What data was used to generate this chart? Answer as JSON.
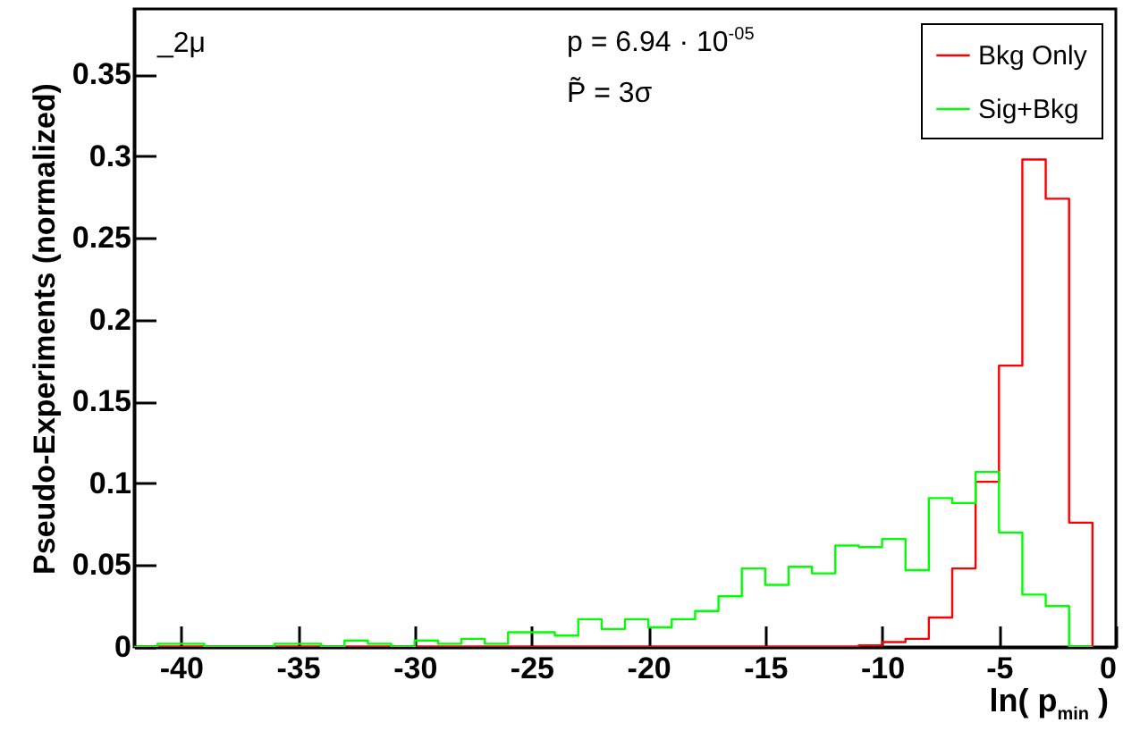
{
  "chart_data": {
    "type": "histogram",
    "xlabel": "ln( p$_{min}$ )",
    "ylabel": "Pseudo-Experiments (normalized)",
    "annotations": [
      "_2μ",
      "p = 6.94 · 10$^{-05}$",
      "P̃ = 3σ"
    ],
    "bins": [
      -42,
      -41,
      -40,
      -39,
      -38,
      -37,
      -36,
      -35,
      -34,
      -33,
      -32,
      -31,
      -30,
      -29,
      -28,
      -27,
      -26,
      -25,
      -24,
      -23,
      -22,
      -21,
      -20,
      -19,
      -18,
      -17,
      -16,
      -15,
      -14,
      -13,
      -12,
      -11,
      -10,
      -9,
      -8,
      -7,
      -6,
      -5,
      -4,
      -3,
      -2,
      -1
    ],
    "series": [
      {
        "name": "Bkg Only",
        "color": "#ff0000",
        "values": [
          0,
          0,
          0,
          0,
          0,
          0,
          0,
          0,
          0,
          0,
          0,
          0,
          0,
          0,
          0,
          0,
          0,
          0,
          0,
          0,
          0,
          0,
          0,
          0,
          0,
          0,
          0,
          0,
          0,
          0,
          0,
          0.001,
          0.003,
          0.005,
          0.018,
          0.048,
          0.101,
          0.172,
          0.298,
          0.274,
          0.076
        ]
      },
      {
        "name": "Sig+Bkg",
        "color": "#00ff00",
        "values": [
          0,
          0.002,
          0.002,
          0,
          0,
          0,
          0.002,
          0.002,
          0,
          0.004,
          0.002,
          0,
          0.004,
          0.002,
          0.005,
          0.002,
          0.009,
          0.009,
          0.007,
          0.017,
          0.011,
          0.017,
          0.012,
          0.017,
          0.022,
          0.031,
          0.048,
          0.038,
          0.049,
          0.045,
          0.062,
          0.061,
          0.066,
          0.047,
          0.091,
          0.088,
          0.107,
          0.07,
          0.032,
          0.025,
          0
        ]
      }
    ],
    "xlim": [
      -42,
      0
    ],
    "xticks": [
      -40,
      -35,
      -30,
      -25,
      -20,
      -15,
      -10,
      -5,
      0
    ],
    "ylim": [
      0,
      0.39
    ],
    "yticks": [
      0,
      0.05,
      0.1,
      0.15,
      0.2,
      0.25,
      0.3,
      0.35
    ],
    "legend": "top right",
    "grid": false
  }
}
